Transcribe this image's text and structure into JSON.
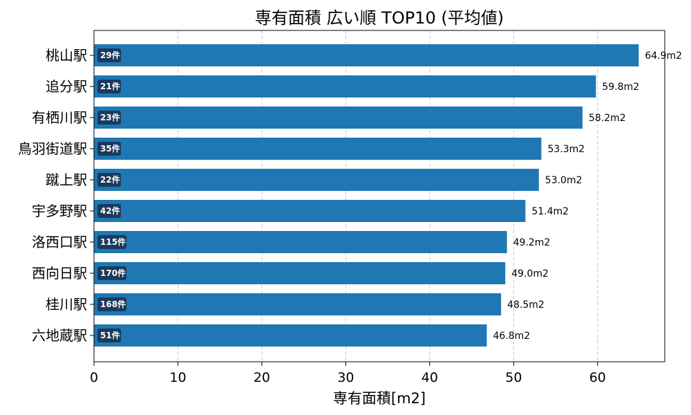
{
  "chart_data": {
    "type": "bar",
    "orientation": "horizontal",
    "title": "専有面積 広い順 TOP10 (平均値)",
    "xlabel": "専有面積[m2]",
    "ylabel": "",
    "xlim": [
      0,
      68
    ],
    "xticks": [
      "0",
      "10",
      "20",
      "30",
      "40",
      "50",
      "60"
    ],
    "grid": "x-dashed",
    "bar_color": "#1f77b4",
    "badge_color": "#1a3a5c",
    "categories": [
      "桃山駅",
      "追分駅",
      "有栖川駅",
      "鳥羽街道駅",
      "蹴上駅",
      "宇多野駅",
      "洛西口駅",
      "西向日駅",
      "桂川駅",
      "六地蔵駅"
    ],
    "values": [
      64.9,
      59.8,
      58.2,
      53.3,
      53.0,
      51.4,
      49.2,
      49.0,
      48.5,
      46.8
    ],
    "value_labels": [
      "64.9m2",
      "59.8m2",
      "58.2m2",
      "53.3m2",
      "53.0m2",
      "51.4m2",
      "49.2m2",
      "49.0m2",
      "48.5m2",
      "46.8m2"
    ],
    "counts": [
      "29件",
      "21件",
      "23件",
      "35件",
      "22件",
      "42件",
      "115件",
      "170件",
      "168件",
      "51件"
    ]
  }
}
